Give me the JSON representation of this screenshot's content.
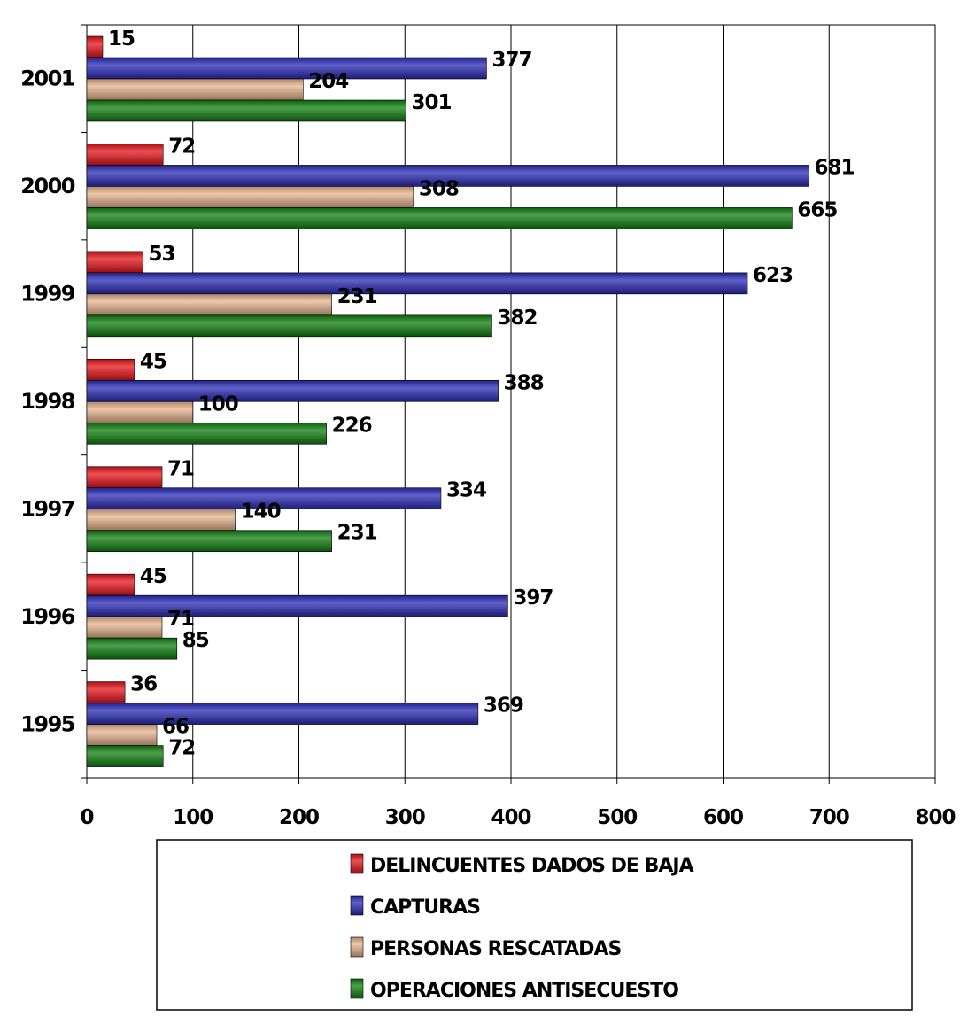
{
  "chart_data": {
    "type": "bar",
    "orientation": "horizontal",
    "categories": [
      "2001",
      "2000",
      "1999",
      "1998",
      "1997",
      "1996",
      "1995"
    ],
    "series": [
      {
        "name": "DELINCUENTES DADOS DE BAJA",
        "color": "#e8141a",
        "values": [
          15,
          72,
          53,
          45,
          71,
          45,
          36
        ]
      },
      {
        "name": "CAPTURAS",
        "color": "#2b2bb8",
        "values": [
          377,
          681,
          623,
          388,
          334,
          397,
          369
        ]
      },
      {
        "name": "PERSONAS RESCATADAS",
        "color": "#e6b48e",
        "values": [
          204,
          308,
          231,
          100,
          140,
          71,
          66
        ]
      },
      {
        "name": "OPERACIONES ANTISECUESTO",
        "color": "#108010",
        "values": [
          301,
          665,
          382,
          226,
          231,
          85,
          72
        ]
      }
    ],
    "x_ticks": [
      "0",
      "100",
      "200",
      "300",
      "400",
      "500",
      "600",
      "700",
      "800"
    ],
    "xlim": [
      0,
      800
    ],
    "grid": true,
    "legend_position": "bottom",
    "data_labels": true
  }
}
